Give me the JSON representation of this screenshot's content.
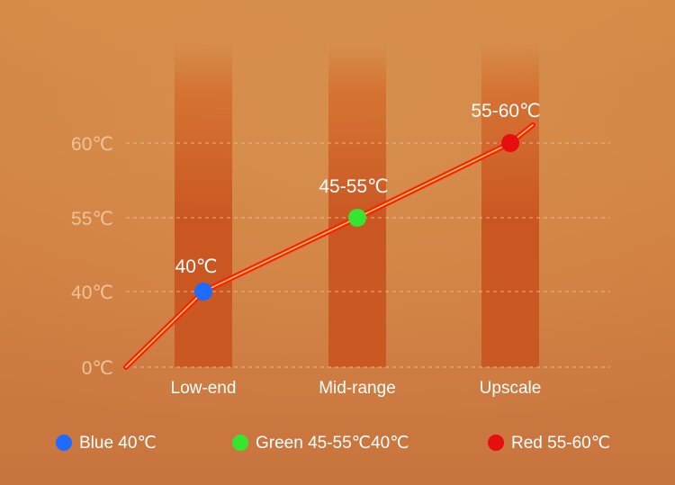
{
  "chart_data": {
    "type": "line",
    "title": "",
    "xlabel": "",
    "ylabel": "",
    "categories": [
      "Low-end",
      "Mid-range",
      "Upscale"
    ],
    "y_ticks": [
      "0℃",
      "40℃",
      "55℃",
      "60℃"
    ],
    "series": [
      {
        "color": "#ff1a1a",
        "points": [
          {
            "x": "",
            "y": "0℃",
            "label": ""
          },
          {
            "x": "Low-end",
            "y": "40℃",
            "label": "40℃",
            "marker_color": "#1f6bff"
          },
          {
            "x": "Mid-range",
            "y": "55℃",
            "label": "45-55℃",
            "marker_color": "#35e52f"
          },
          {
            "x": "Upscale",
            "y": "60℃",
            "label": "55-60℃",
            "marker_color": "#e60e0e"
          }
        ]
      }
    ],
    "grid": true,
    "legend_position": "bottom",
    "colors": {
      "background": "#d48b45",
      "column_light": "#d46a2c",
      "column_dark": "#c9541f",
      "gridline": "#f0c7a0",
      "tick_label": "#efc29a",
      "category_label": "#ffffff"
    }
  },
  "legend": [
    {
      "label": "Blue 40℃",
      "color": "#1f6bff"
    },
    {
      "label": "Green 45-55℃40℃",
      "color": "#35e52f"
    },
    {
      "label": "Red 55-60℃",
      "color": "#e60e0e"
    }
  ]
}
